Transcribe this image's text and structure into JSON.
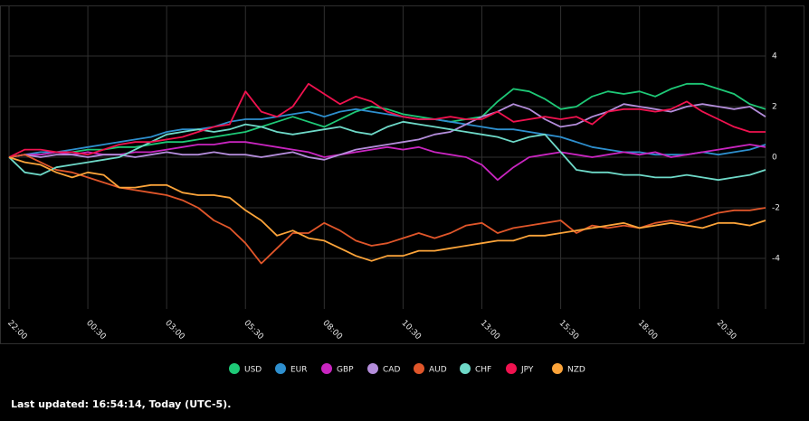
{
  "chart_data": {
    "type": "line",
    "categories": [
      "22:00",
      null,
      null,
      null,
      null,
      "00:30",
      null,
      null,
      null,
      null,
      "03:00",
      null,
      null,
      null,
      null,
      "05:30",
      null,
      null,
      null,
      null,
      "08:00",
      null,
      null,
      null,
      null,
      "10:30",
      null,
      null,
      null,
      null,
      "13:00",
      null,
      null,
      null,
      null,
      "15:30",
      null,
      null,
      null,
      null,
      "18:00",
      null,
      null,
      null,
      null,
      "20:30",
      null,
      null,
      null
    ],
    "ylim": [
      -6,
      6
    ],
    "yticks": [
      -4,
      -2,
      0,
      2,
      4
    ],
    "grid": true,
    "series": [
      {
        "name": "USD",
        "color": "#1ec977",
        "values": [
          0,
          0.1,
          0.1,
          0.2,
          0.2,
          0.3,
          0.3,
          0.4,
          0.4,
          0.5,
          0.6,
          0.6,
          0.7,
          0.8,
          0.9,
          1.0,
          1.2,
          1.4,
          1.6,
          1.4,
          1.2,
          1.5,
          1.8,
          2.0,
          1.9,
          1.7,
          1.6,
          1.5,
          1.4,
          1.5,
          1.6,
          2.2,
          2.7,
          2.6,
          2.3,
          1.9,
          2.0,
          2.4,
          2.6,
          2.5,
          2.6,
          2.4,
          2.7,
          2.9,
          2.9,
          2.7,
          2.5,
          2.1,
          1.9
        ]
      },
      {
        "name": "EUR",
        "color": "#2e8fce",
        "values": [
          0,
          0.1,
          0.2,
          0.2,
          0.3,
          0.4,
          0.5,
          0.6,
          0.7,
          0.8,
          1.0,
          1.1,
          1.1,
          1.2,
          1.4,
          1.5,
          1.5,
          1.6,
          1.7,
          1.8,
          1.6,
          1.8,
          1.9,
          1.8,
          1.7,
          1.6,
          1.5,
          1.5,
          1.4,
          1.3,
          1.2,
          1.1,
          1.1,
          1.0,
          0.9,
          0.8,
          0.6,
          0.4,
          0.3,
          0.2,
          0.2,
          0.1,
          0.1,
          0.1,
          0.2,
          0.1,
          0.2,
          0.3,
          0.5
        ]
      },
      {
        "name": "GBP",
        "color": "#c925c0",
        "values": [
          0,
          0.1,
          0.1,
          0.2,
          0.1,
          0.2,
          0.1,
          0.1,
          0.2,
          0.2,
          0.3,
          0.4,
          0.5,
          0.5,
          0.6,
          0.6,
          0.5,
          0.4,
          0.3,
          0.2,
          0.0,
          0.1,
          0.2,
          0.3,
          0.4,
          0.3,
          0.4,
          0.2,
          0.1,
          0.0,
          -0.3,
          -0.9,
          -0.4,
          0.0,
          0.1,
          0.2,
          0.1,
          0.0,
          0.1,
          0.2,
          0.1,
          0.2,
          0.0,
          0.1,
          0.2,
          0.3,
          0.4,
          0.5,
          0.4
        ]
      },
      {
        "name": "CAD",
        "color": "#b48ddb",
        "values": [
          0,
          0.1,
          0.0,
          0.1,
          0.1,
          0.0,
          0.1,
          0.1,
          0.0,
          0.1,
          0.2,
          0.1,
          0.1,
          0.2,
          0.1,
          0.1,
          0.0,
          0.1,
          0.2,
          0.0,
          -0.1,
          0.1,
          0.3,
          0.4,
          0.5,
          0.6,
          0.7,
          0.9,
          1.0,
          1.3,
          1.6,
          1.8,
          2.1,
          1.9,
          1.5,
          1.2,
          1.3,
          1.6,
          1.8,
          2.1,
          2.0,
          1.9,
          1.8,
          2.0,
          2.1,
          2.0,
          1.9,
          2.0,
          1.6
        ]
      },
      {
        "name": "AUD",
        "color": "#e0562a",
        "values": [
          0,
          0.1,
          -0.2,
          -0.5,
          -0.6,
          -0.8,
          -1.0,
          -1.2,
          -1.3,
          -1.4,
          -1.5,
          -1.7,
          -2.0,
          -2.5,
          -2.8,
          -3.4,
          -4.2,
          -3.6,
          -3.0,
          -3.0,
          -2.6,
          -2.9,
          -3.3,
          -3.5,
          -3.4,
          -3.2,
          -3.0,
          -3.2,
          -3.0,
          -2.7,
          -2.6,
          -3.0,
          -2.8,
          -2.7,
          -2.6,
          -2.5,
          -3.0,
          -2.7,
          -2.8,
          -2.7,
          -2.8,
          -2.6,
          -2.5,
          -2.6,
          -2.4,
          -2.2,
          -2.1,
          -2.1,
          -2.0
        ]
      },
      {
        "name": "CHF",
        "color": "#6ed9c8",
        "values": [
          0,
          -0.6,
          -0.7,
          -0.4,
          -0.3,
          -0.2,
          -0.1,
          0.0,
          0.3,
          0.6,
          0.9,
          1.0,
          1.1,
          1.0,
          1.1,
          1.3,
          1.2,
          1.0,
          0.9,
          1.0,
          1.1,
          1.2,
          1.0,
          0.9,
          1.2,
          1.4,
          1.3,
          1.2,
          1.1,
          1.0,
          0.9,
          0.8,
          0.6,
          0.8,
          0.9,
          0.2,
          -0.5,
          -0.6,
          -0.6,
          -0.7,
          -0.7,
          -0.8,
          -0.8,
          -0.7,
          -0.8,
          -0.9,
          -0.8,
          -0.7,
          -0.5
        ]
      },
      {
        "name": "JPY",
        "color": "#f0124f",
        "values": [
          0,
          0.3,
          0.3,
          0.2,
          0.2,
          0.1,
          0.3,
          0.5,
          0.6,
          0.6,
          0.7,
          0.8,
          1.0,
          1.2,
          1.3,
          2.6,
          1.8,
          1.6,
          2.0,
          2.9,
          2.5,
          2.1,
          2.4,
          2.2,
          1.8,
          1.6,
          1.5,
          1.5,
          1.6,
          1.5,
          1.5,
          1.8,
          1.4,
          1.5,
          1.6,
          1.5,
          1.6,
          1.3,
          1.8,
          1.9,
          1.9,
          1.8,
          1.9,
          2.2,
          1.8,
          1.5,
          1.2,
          1.0,
          1.0
        ]
      },
      {
        "name": "NZD",
        "color": "#fca43a",
        "values": [
          0,
          -0.2,
          -0.3,
          -0.6,
          -0.8,
          -0.6,
          -0.7,
          -1.2,
          -1.2,
          -1.1,
          -1.1,
          -1.4,
          -1.5,
          -1.5,
          -1.6,
          -2.1,
          -2.5,
          -3.1,
          -2.9,
          -3.2,
          -3.3,
          -3.6,
          -3.9,
          -4.1,
          -3.9,
          -3.9,
          -3.7,
          -3.7,
          -3.6,
          -3.5,
          -3.4,
          -3.3,
          -3.3,
          -3.1,
          -3.1,
          -3.0,
          -2.9,
          -2.8,
          -2.7,
          -2.6,
          -2.8,
          -2.7,
          -2.6,
          -2.7,
          -2.8,
          -2.6,
          -2.6,
          -2.7,
          -2.5
        ]
      }
    ],
    "footer": "Last updated: 16:54:14, Today (UTC-5)."
  }
}
